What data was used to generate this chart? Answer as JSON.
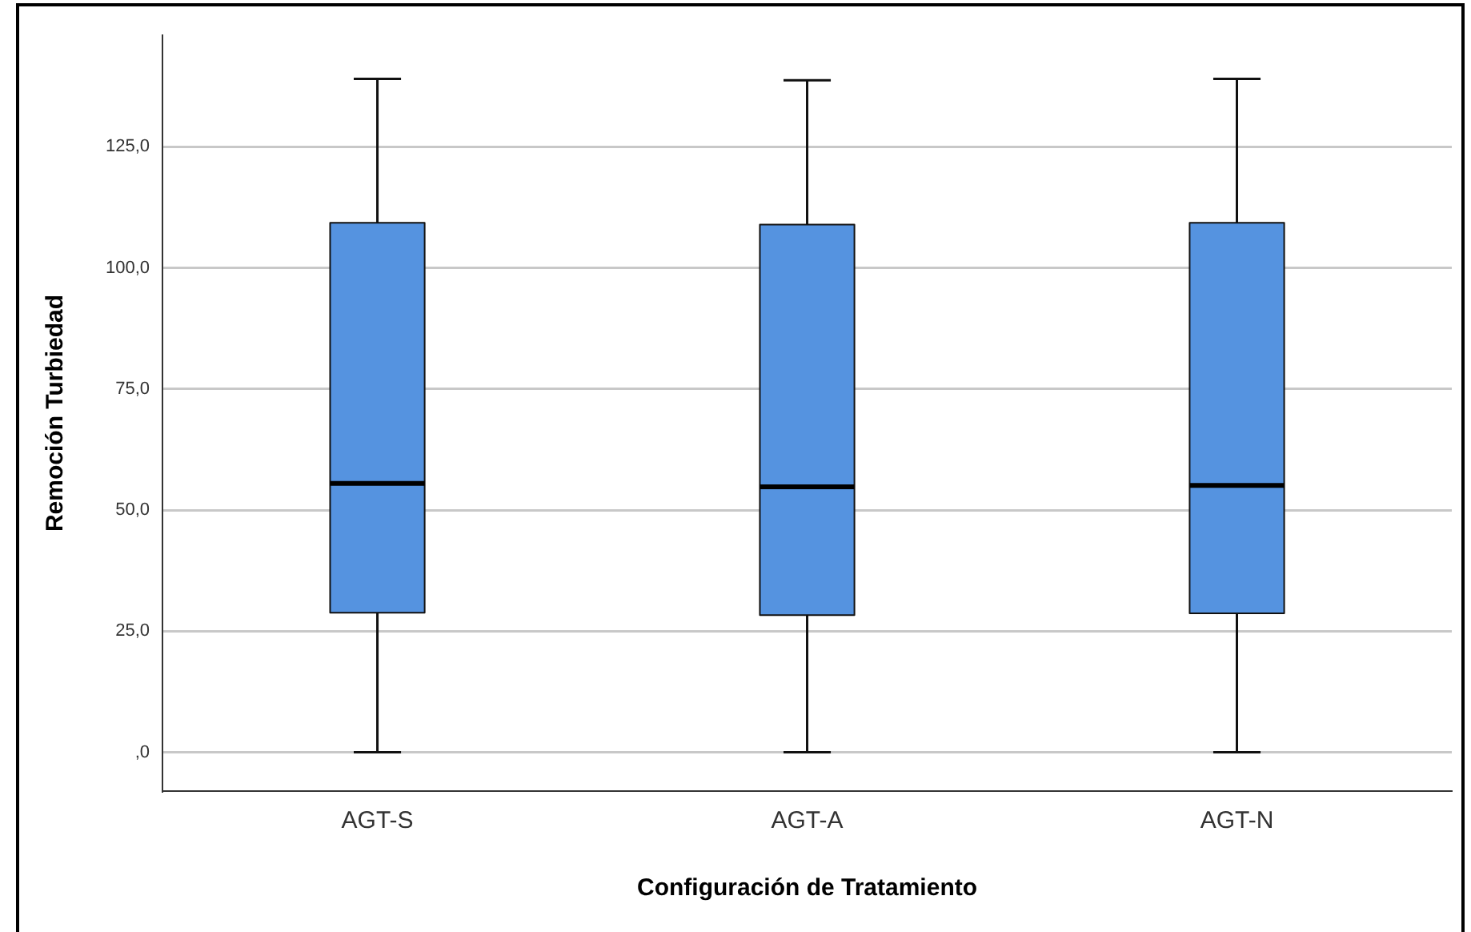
{
  "chart_data": {
    "type": "box",
    "xlabel": "Configuración de Tratamiento",
    "ylabel": "Remoción Turbiedad",
    "categories": [
      "AGT-S",
      "AGT-A",
      "AGT-N"
    ],
    "color": "#5593e0",
    "boxes": [
      {
        "low": 0,
        "q1": 28.8,
        "median": 55.5,
        "q3": 109.3,
        "high": 139.0
      },
      {
        "low": 0,
        "q1": 28.3,
        "median": 54.8,
        "q3": 108.9,
        "high": 138.7
      },
      {
        "low": 0,
        "q1": 28.7,
        "median": 55.1,
        "q3": 109.3,
        "high": 139.0
      }
    ],
    "ylim": [
      -8,
      148
    ],
    "yticks": [
      {
        "value": 0,
        "label": ",0"
      },
      {
        "value": 25,
        "label": "25,0"
      },
      {
        "value": 50,
        "label": "50,0"
      },
      {
        "value": 75,
        "label": "75,0"
      },
      {
        "value": 100,
        "label": "100,0"
      },
      {
        "value": 125,
        "label": "125,0"
      }
    ],
    "grid": "y",
    "legend": false
  }
}
